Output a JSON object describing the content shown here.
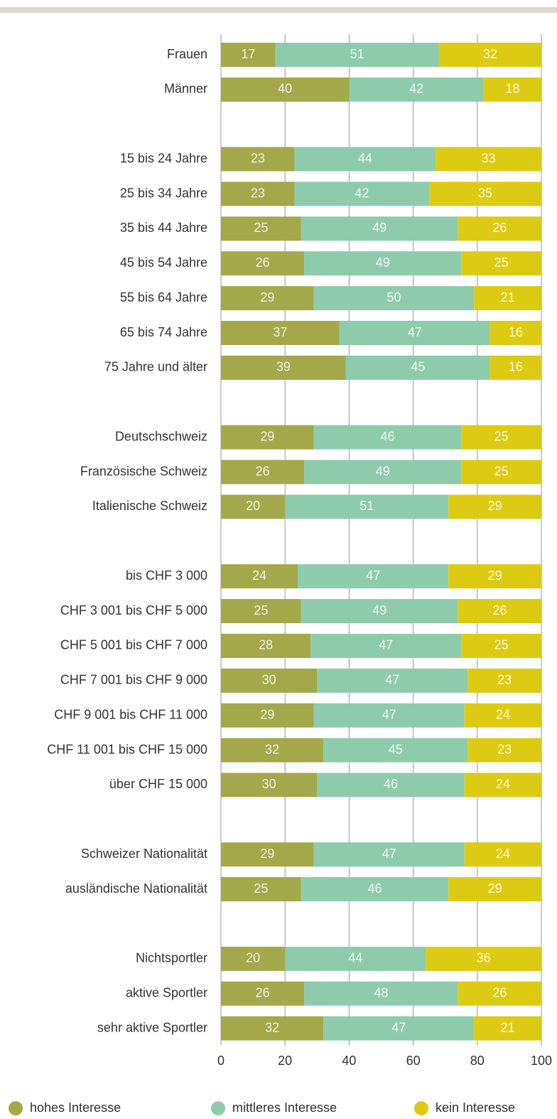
{
  "chart_data": {
    "type": "stacked-barh",
    "categories": [
      "Frauen",
      "Männer",
      null,
      "15 bis 24 Jahre",
      "25 bis 34 Jahre",
      "35 bis 44 Jahre",
      "45 bis 54 Jahre",
      "55 bis 64 Jahre",
      "65 bis 74 Jahre",
      "75 Jahre und älter",
      null,
      "Deutschschweiz",
      "Französische Schweiz",
      "Italienische Schweiz",
      null,
      "bis CHF 3 000",
      "CHF 3 001 bis CHF 5 000",
      "CHF 5 001 bis CHF 7 000",
      "CHF 7 001 bis CHF 9 000",
      "CHF 9 001 bis CHF 11 000",
      "CHF 11 001 bis CHF 15 000",
      "über CHF 15 000",
      null,
      "Schweizer Nationalität",
      "ausländische Nationalität",
      null,
      "Nichtsportler",
      "aktive Sportler",
      "sehr aktive Sportler"
    ],
    "series": [
      {
        "name": "hohes Interesse",
        "color": "#a3a84a",
        "values": [
          17,
          40,
          null,
          23,
          23,
          25,
          26,
          29,
          37,
          39,
          null,
          29,
          26,
          20,
          null,
          24,
          25,
          28,
          30,
          29,
          32,
          30,
          null,
          29,
          25,
          null,
          20,
          26,
          32
        ]
      },
      {
        "name": "mittleres Interesse",
        "color": "#8ecbac",
        "values": [
          51,
          42,
          null,
          44,
          42,
          49,
          49,
          50,
          47,
          45,
          null,
          46,
          49,
          51,
          null,
          47,
          49,
          47,
          47,
          47,
          45,
          46,
          null,
          47,
          46,
          null,
          44,
          48,
          47
        ]
      },
      {
        "name": "kein Interesse",
        "color": "#dccb12",
        "values": [
          32,
          18,
          null,
          33,
          35,
          26,
          25,
          21,
          16,
          16,
          null,
          25,
          25,
          29,
          null,
          29,
          26,
          25,
          23,
          24,
          23,
          24,
          null,
          24,
          29,
          null,
          36,
          26,
          21
        ]
      }
    ],
    "xlim": [
      0,
      100
    ],
    "xticks": [
      0,
      20,
      40,
      60,
      80,
      100
    ],
    "grid": true
  }
}
